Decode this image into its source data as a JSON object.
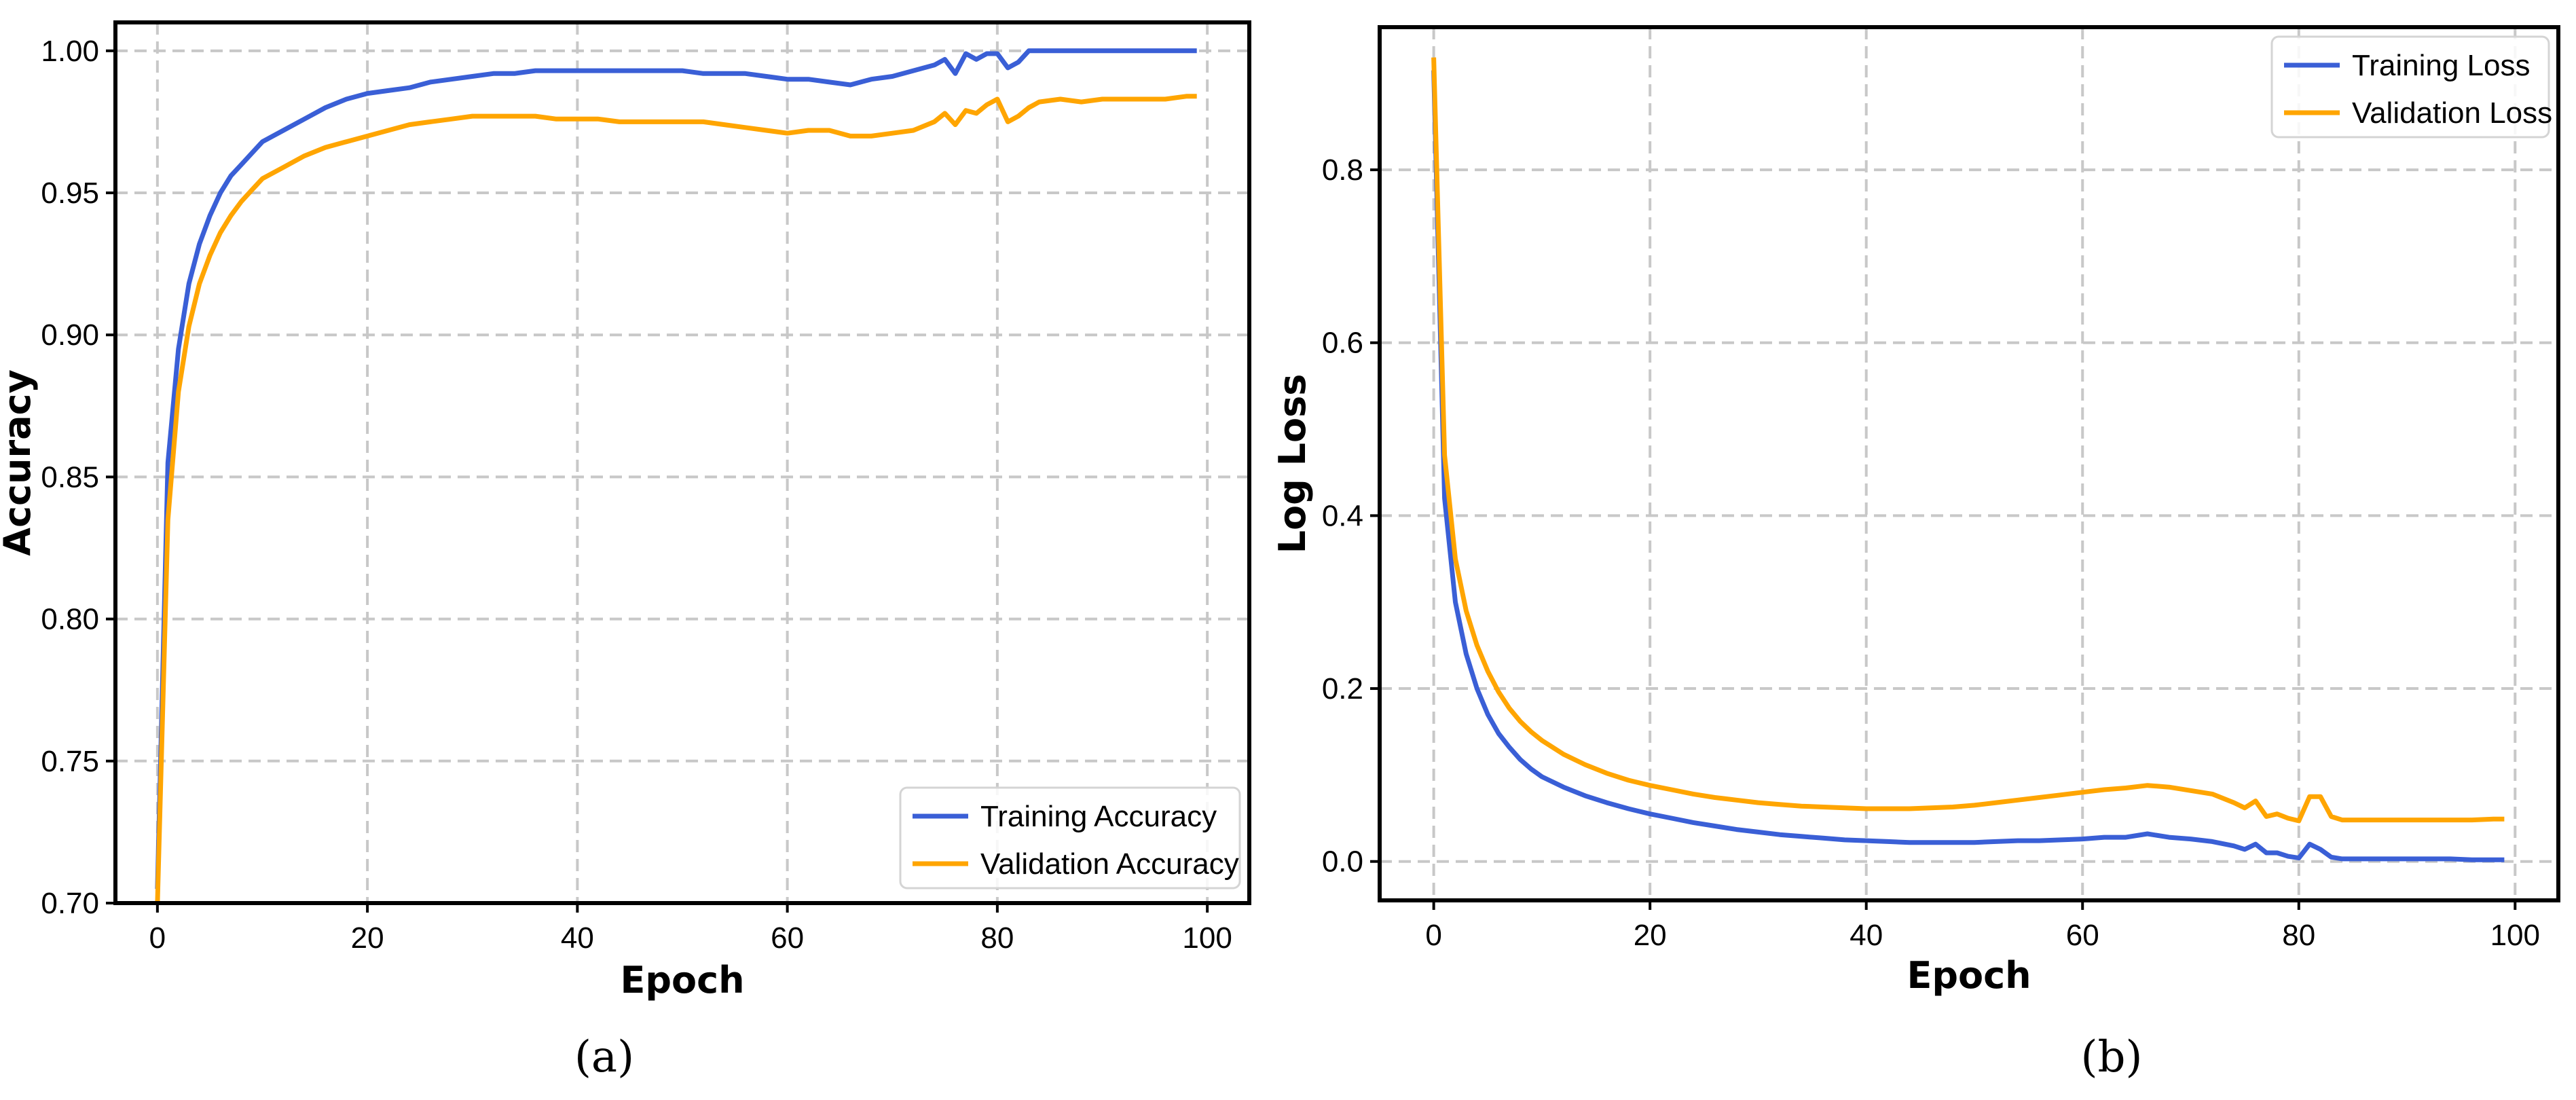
{
  "colors": {
    "training": "#3a5fd6",
    "validation": "#ffa500",
    "grid": "#c8c8c8"
  },
  "chart_data": [
    {
      "id": "a",
      "type": "line",
      "caption": "(a)",
      "xlabel": "Epoch",
      "ylabel": "Accuracy",
      "xlim": [
        -4,
        104
      ],
      "ylim": [
        0.7,
        1.01
      ],
      "xticks": [
        0,
        20,
        40,
        60,
        80,
        100
      ],
      "xtick_labels": [
        "0",
        "20",
        "40",
        "60",
        "80",
        "100"
      ],
      "yticks": [
        0.7,
        0.75,
        0.8,
        0.85,
        0.9,
        0.95,
        1.0
      ],
      "ytick_labels": [
        "0.70",
        "0.75",
        "0.80",
        "0.85",
        "0.90",
        "0.95",
        "1.00"
      ],
      "grid": true,
      "legend_position": "lower-right",
      "series": [
        {
          "name": "Training Accuracy",
          "color_key": "training",
          "x": [
            0,
            1,
            2,
            3,
            4,
            5,
            6,
            7,
            8,
            9,
            10,
            12,
            14,
            16,
            18,
            20,
            22,
            24,
            26,
            28,
            30,
            32,
            34,
            36,
            38,
            40,
            42,
            44,
            46,
            48,
            50,
            52,
            54,
            56,
            58,
            60,
            62,
            64,
            66,
            68,
            70,
            72,
            74,
            75,
            76,
            77,
            78,
            79,
            80,
            81,
            82,
            83,
            84,
            86,
            88,
            90,
            92,
            94,
            96,
            98,
            99
          ],
          "y": [
            0.705,
            0.855,
            0.895,
            0.918,
            0.932,
            0.942,
            0.95,
            0.956,
            0.96,
            0.964,
            0.968,
            0.972,
            0.976,
            0.98,
            0.983,
            0.985,
            0.986,
            0.987,
            0.989,
            0.99,
            0.991,
            0.992,
            0.992,
            0.993,
            0.993,
            0.993,
            0.993,
            0.993,
            0.993,
            0.993,
            0.993,
            0.992,
            0.992,
            0.992,
            0.991,
            0.99,
            0.99,
            0.989,
            0.988,
            0.99,
            0.991,
            0.993,
            0.995,
            0.997,
            0.992,
            0.999,
            0.997,
            0.999,
            0.999,
            0.994,
            0.996,
            1.0,
            1.0,
            1.0,
            1.0,
            1.0,
            1.0,
            1.0,
            1.0,
            1.0,
            1.0
          ]
        },
        {
          "name": "Validation Accuracy",
          "color_key": "validation",
          "x": [
            0,
            1,
            2,
            3,
            4,
            5,
            6,
            7,
            8,
            9,
            10,
            12,
            14,
            16,
            18,
            20,
            22,
            24,
            26,
            28,
            30,
            32,
            34,
            36,
            38,
            40,
            42,
            44,
            46,
            48,
            50,
            52,
            54,
            56,
            58,
            60,
            62,
            64,
            66,
            68,
            70,
            72,
            74,
            75,
            76,
            77,
            78,
            79,
            80,
            81,
            82,
            83,
            84,
            86,
            88,
            90,
            92,
            94,
            96,
            98,
            99
          ],
          "y": [
            0.7,
            0.835,
            0.88,
            0.903,
            0.918,
            0.928,
            0.936,
            0.942,
            0.947,
            0.951,
            0.955,
            0.959,
            0.963,
            0.966,
            0.968,
            0.97,
            0.972,
            0.974,
            0.975,
            0.976,
            0.977,
            0.977,
            0.977,
            0.977,
            0.976,
            0.976,
            0.976,
            0.975,
            0.975,
            0.975,
            0.975,
            0.975,
            0.974,
            0.973,
            0.972,
            0.971,
            0.972,
            0.972,
            0.97,
            0.97,
            0.971,
            0.972,
            0.975,
            0.978,
            0.974,
            0.979,
            0.978,
            0.981,
            0.983,
            0.975,
            0.977,
            0.98,
            0.982,
            0.983,
            0.982,
            0.983,
            0.983,
            0.983,
            0.983,
            0.984,
            0.984
          ]
        }
      ]
    },
    {
      "id": "b",
      "type": "line",
      "caption": "(b)",
      "xlabel": "Epoch",
      "ylabel": "Log Loss",
      "xlim": [
        -5,
        104
      ],
      "ylim": [
        -0.045,
        0.965
      ],
      "xticks": [
        0,
        20,
        40,
        60,
        80,
        100
      ],
      "xtick_labels": [
        "0",
        "20",
        "40",
        "60",
        "80",
        "100"
      ],
      "yticks": [
        0.0,
        0.2,
        0.4,
        0.6,
        0.8
      ],
      "ytick_labels": [
        "0.0",
        "0.2",
        "0.4",
        "0.6",
        "0.8"
      ],
      "grid": true,
      "legend_position": "upper-right",
      "series": [
        {
          "name": "Training Loss",
          "color_key": "training",
          "x": [
            0,
            1,
            2,
            3,
            4,
            5,
            6,
            7,
            8,
            9,
            10,
            12,
            14,
            16,
            18,
            20,
            22,
            24,
            26,
            28,
            30,
            32,
            34,
            36,
            38,
            40,
            42,
            44,
            46,
            48,
            50,
            52,
            54,
            56,
            58,
            60,
            62,
            64,
            66,
            68,
            70,
            72,
            74,
            75,
            76,
            77,
            78,
            79,
            80,
            81,
            82,
            83,
            84,
            86,
            88,
            90,
            92,
            94,
            96,
            98,
            99
          ],
          "y": [
            0.915,
            0.42,
            0.3,
            0.24,
            0.2,
            0.17,
            0.148,
            0.132,
            0.118,
            0.107,
            0.098,
            0.086,
            0.076,
            0.068,
            0.061,
            0.055,
            0.05,
            0.045,
            0.041,
            0.037,
            0.034,
            0.031,
            0.029,
            0.027,
            0.025,
            0.024,
            0.023,
            0.022,
            0.022,
            0.022,
            0.022,
            0.023,
            0.024,
            0.024,
            0.025,
            0.026,
            0.028,
            0.028,
            0.032,
            0.028,
            0.026,
            0.023,
            0.018,
            0.014,
            0.02,
            0.01,
            0.01,
            0.006,
            0.004,
            0.02,
            0.014,
            0.005,
            0.003,
            0.003,
            0.003,
            0.003,
            0.003,
            0.003,
            0.002,
            0.002,
            0.002
          ]
        },
        {
          "name": "Validation Loss",
          "color_key": "validation",
          "x": [
            0,
            1,
            2,
            3,
            4,
            5,
            6,
            7,
            8,
            9,
            10,
            12,
            14,
            16,
            18,
            20,
            22,
            24,
            26,
            28,
            30,
            32,
            34,
            36,
            38,
            40,
            42,
            44,
            46,
            48,
            50,
            52,
            54,
            56,
            58,
            60,
            62,
            64,
            66,
            68,
            70,
            72,
            74,
            75,
            76,
            77,
            78,
            79,
            80,
            81,
            82,
            83,
            84,
            86,
            88,
            90,
            92,
            94,
            96,
            98,
            99
          ],
          "y": [
            0.93,
            0.47,
            0.35,
            0.29,
            0.25,
            0.22,
            0.196,
            0.177,
            0.162,
            0.15,
            0.14,
            0.124,
            0.112,
            0.102,
            0.094,
            0.088,
            0.083,
            0.078,
            0.074,
            0.071,
            0.068,
            0.066,
            0.064,
            0.063,
            0.062,
            0.061,
            0.061,
            0.061,
            0.062,
            0.063,
            0.065,
            0.068,
            0.071,
            0.074,
            0.077,
            0.08,
            0.083,
            0.085,
            0.088,
            0.086,
            0.082,
            0.078,
            0.068,
            0.062,
            0.07,
            0.052,
            0.055,
            0.05,
            0.047,
            0.075,
            0.075,
            0.052,
            0.048,
            0.048,
            0.048,
            0.048,
            0.048,
            0.048,
            0.048,
            0.049,
            0.049
          ]
        }
      ]
    }
  ]
}
